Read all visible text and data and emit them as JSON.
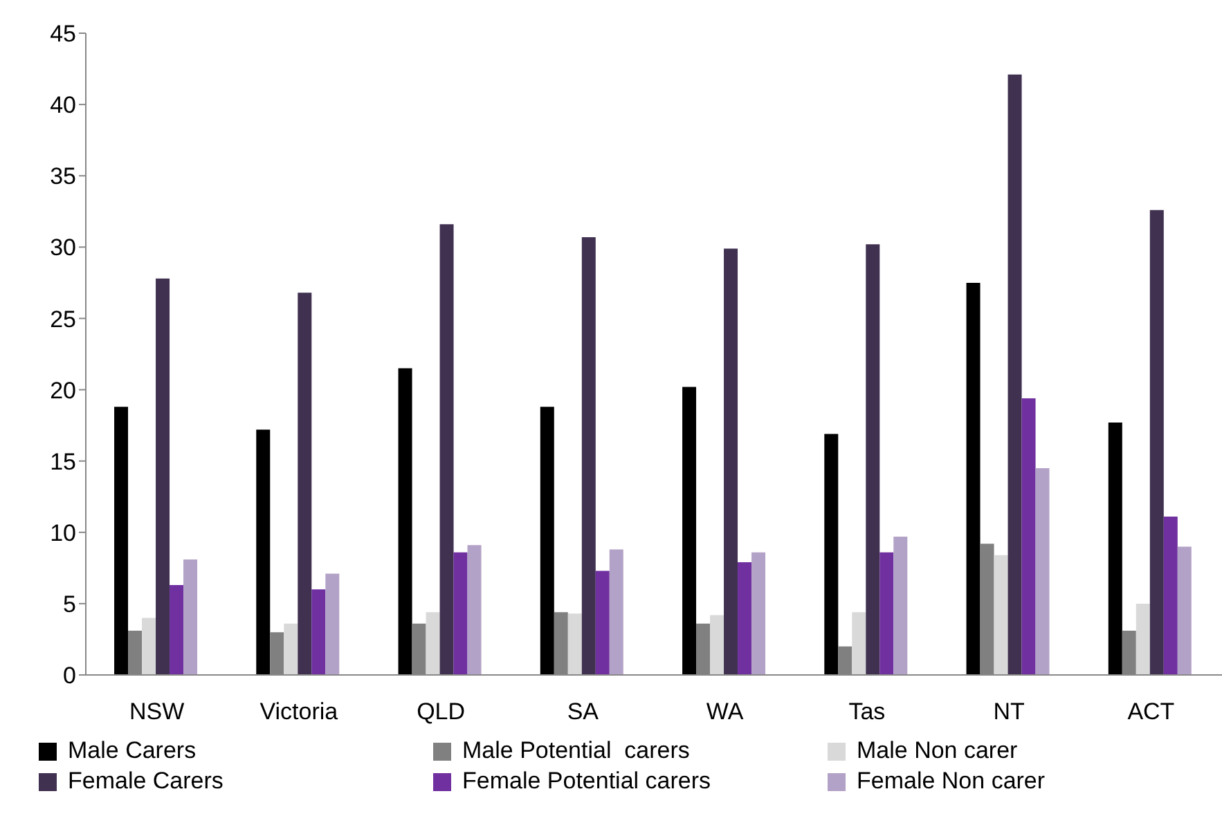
{
  "chart_data": {
    "type": "bar",
    "categories": [
      "NSW",
      "Victoria",
      "QLD",
      "SA",
      "WA",
      "Tas",
      "NT",
      "ACT"
    ],
    "series": [
      {
        "name": "Male Carers",
        "color": "#000000",
        "values": [
          18.8,
          17.2,
          21.5,
          18.8,
          20.2,
          16.9,
          27.5,
          17.7
        ]
      },
      {
        "name": "Male Potential  carers",
        "color": "#808080",
        "values": [
          3.1,
          3.0,
          3.6,
          4.4,
          3.6,
          2.0,
          9.2,
          3.1
        ]
      },
      {
        "name": "Male Non carer",
        "color": "#d9d9d9",
        "values": [
          4.0,
          3.6,
          4.4,
          4.3,
          4.2,
          4.4,
          8.4,
          5.0
        ]
      },
      {
        "name": "Female Carers",
        "color": "#403151",
        "values": [
          27.8,
          26.8,
          31.6,
          30.7,
          29.9,
          30.2,
          42.1,
          32.6
        ]
      },
      {
        "name": "Female Potential carers",
        "color": "#7030a0",
        "values": [
          6.3,
          6.0,
          8.6,
          7.3,
          7.9,
          8.6,
          19.4,
          11.1
        ]
      },
      {
        "name": "Female Non carer",
        "color": "#b3a2c7",
        "values": [
          8.1,
          7.1,
          9.1,
          8.8,
          8.6,
          9.7,
          14.5,
          9.0
        ]
      }
    ],
    "ylim": [
      0,
      45
    ],
    "yticks": [
      0,
      5,
      10,
      15,
      20,
      25,
      30,
      35,
      40,
      45
    ],
    "grid": false,
    "legend": "bottom"
  }
}
